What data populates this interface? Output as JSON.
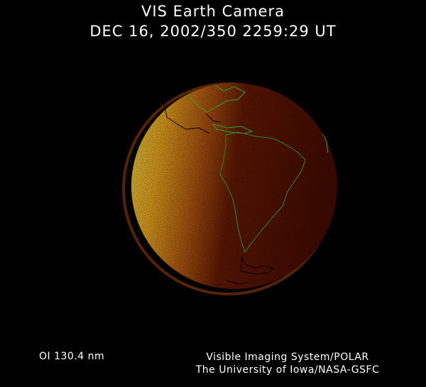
{
  "header": {
    "title": "VIS Earth Camera",
    "timestamp": "DEC 16, 2002/350 2259:29 UT"
  },
  "image": {
    "subject": "Earth disk far-ultraviolet emission",
    "colors": {
      "limb_bright": "#ffd23a",
      "mid": "#c0600a",
      "dark": "#4a0c00",
      "coastline": "#2fa02f"
    }
  },
  "footer": {
    "band": "OI  130.4 nm",
    "instrument": "Visible Imaging System/POLAR",
    "institution": "The University of Iowa/NASA-GSFC"
  }
}
